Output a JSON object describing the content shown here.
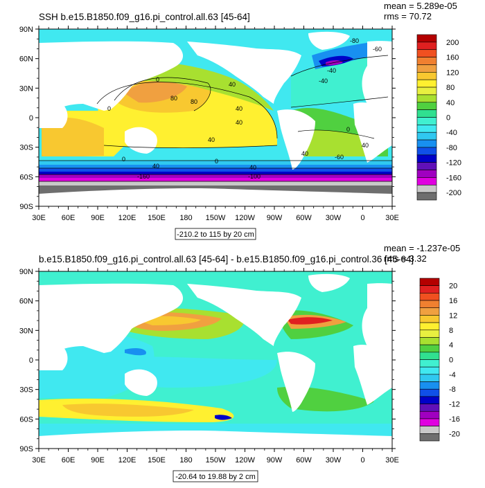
{
  "panels": [
    {
      "title": "SSH b.e15.B1850.f09_g16.pi_control.all.63 [45-64]",
      "mean": "mean = 5.289e-05",
      "rms": "rms = 70.72",
      "range_label": "-210.2 to 115 by 20 cm",
      "contour_labels": [
        "0",
        "40",
        "80",
        "40",
        "40",
        "40",
        "0",
        "0",
        "0",
        "40",
        "80",
        "-80",
        "-60",
        "-40",
        "-160",
        "-100",
        "40",
        "-60",
        "40",
        "40",
        "0",
        "-40"
      ],
      "colorbar": {
        "labels": [
          "200",
          "160",
          "120",
          "80",
          "40",
          "0",
          "-40",
          "-80",
          "-120",
          "-160",
          "-200"
        ],
        "colors": [
          "#b40000",
          "#e02020",
          "#f05020",
          "#f08030",
          "#f0a040",
          "#f8c830",
          "#fff030",
          "#e8f040",
          "#a8e030",
          "#50d040",
          "#30e090",
          "#40f0d0",
          "#40e8f0",
          "#30c8f0",
          "#1890f0",
          "#1050e8",
          "#0000c8",
          "#6010b8",
          "#a000c0",
          "#e000e0",
          "#c8c8c8",
          "#6e6e6e"
        ]
      }
    },
    {
      "title": "b.e15.B1850.f09_g16.pi_control.all.63 [45-64] - b.e15.B1850.f09_g16.pi_control.36 [45-64]",
      "mean": "mean = -1.237e-05",
      "rms": "rms = 3.32",
      "range_label": "-20.64 to 19.88 by 2 cm",
      "colorbar": {
        "labels": [
          "20",
          "16",
          "12",
          "8",
          "4",
          "0",
          "-4",
          "-8",
          "-12",
          "-16",
          "-20"
        ],
        "colors": [
          "#b40000",
          "#e02020",
          "#f05020",
          "#f08030",
          "#f0a040",
          "#f8c830",
          "#fff030",
          "#e8f040",
          "#a8e030",
          "#50d040",
          "#30e090",
          "#40f0d0",
          "#40e8f0",
          "#30c8f0",
          "#1890f0",
          "#1050e8",
          "#0000c8",
          "#6010b8",
          "#a000c0",
          "#e000e0",
          "#c8c8c8",
          "#6e6e6e"
        ]
      }
    }
  ],
  "axes": {
    "lat_labels": [
      "90N",
      "60N",
      "30N",
      "0",
      "30S",
      "60S",
      "90S"
    ],
    "lon_labels": [
      "30E",
      "60E",
      "90E",
      "120E",
      "150E",
      "180",
      "150W",
      "120W",
      "90W",
      "60W",
      "30W",
      "0",
      "30E"
    ]
  },
  "colors": {
    "land": "#ffffff",
    "frame": "#000000"
  }
}
